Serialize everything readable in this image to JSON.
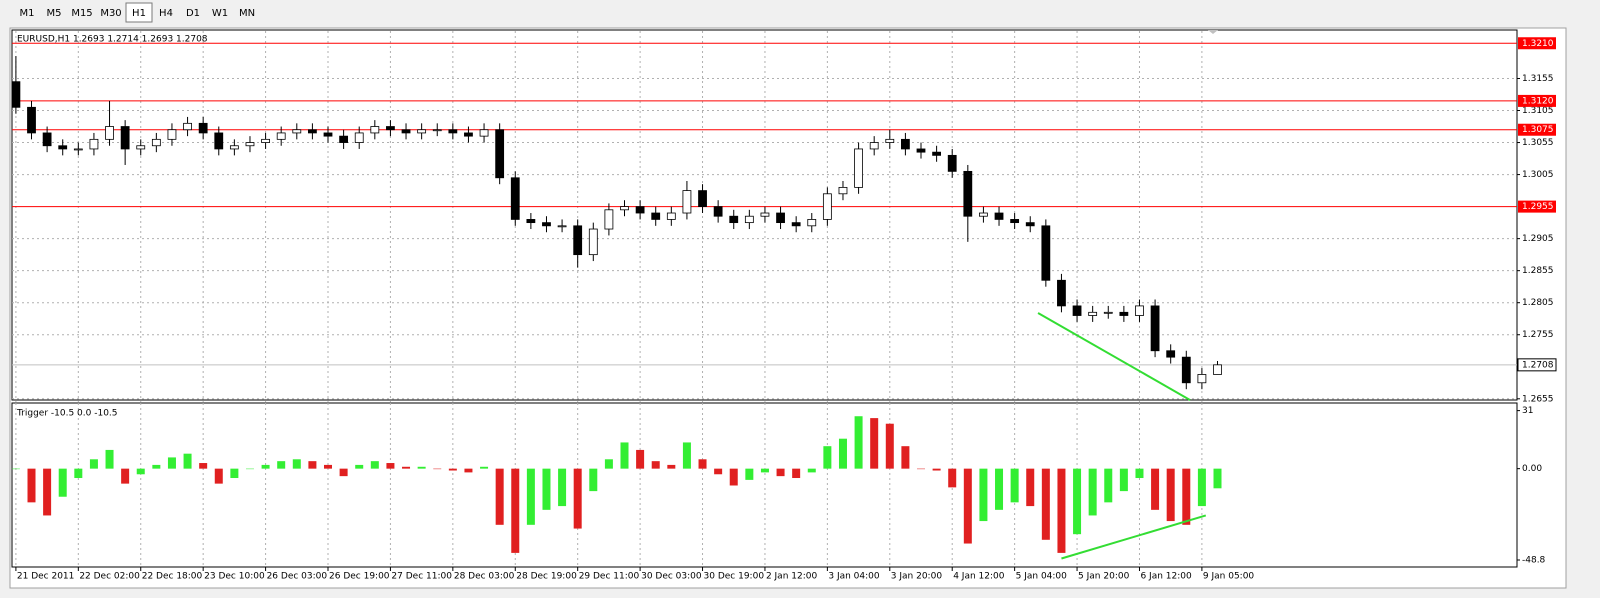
{
  "toolbar": {
    "timeframes": [
      "M1",
      "M5",
      "M15",
      "M30",
      "H1",
      "H4",
      "D1",
      "W1",
      "MN"
    ],
    "active_index": 4
  },
  "chart_data": [
    {
      "type": "candlestick",
      "title": "EURUSD,H1  1.2693 1.2714 1.2693 1.2708",
      "x": [
        0,
        4,
        8,
        12,
        16,
        20,
        24,
        28,
        32,
        36,
        40,
        44,
        48,
        52,
        56,
        60,
        64,
        68,
        72,
        76,
        80,
        84,
        88,
        92,
        96,
        100,
        104,
        108,
        112,
        116,
        120,
        124,
        128,
        132,
        136,
        140,
        144,
        148,
        152,
        156,
        160,
        164,
        168,
        172,
        176,
        180,
        184,
        188,
        192,
        196,
        200,
        204,
        208,
        212,
        216,
        220,
        224,
        228,
        232,
        236,
        240,
        244,
        248,
        252,
        256,
        260,
        264,
        268,
        272,
        276,
        280,
        284,
        288,
        292,
        296,
        300,
        304,
        308
      ],
      "open": [
        1.315,
        1.311,
        1.307,
        1.305,
        1.3045,
        1.3045,
        1.306,
        1.308,
        1.3045,
        1.305,
        1.306,
        1.3075,
        1.3085,
        1.307,
        1.3045,
        1.305,
        1.3055,
        1.306,
        1.307,
        1.3075,
        1.307,
        1.3065,
        1.3055,
        1.307,
        1.308,
        1.3075,
        1.307,
        1.3075,
        1.3075,
        1.307,
        1.3065,
        1.3075,
        1.3,
        1.2935,
        1.293,
        1.2925,
        1.2925,
        1.288,
        1.292,
        1.295,
        1.2955,
        1.2945,
        1.2935,
        1.2945,
        1.298,
        1.2955,
        1.294,
        1.293,
        1.294,
        1.2945,
        1.293,
        1.2925,
        1.2935,
        1.2975,
        1.2985,
        1.3045,
        1.3055,
        1.306,
        1.3045,
        1.304,
        1.3035,
        1.301,
        1.294,
        1.2945,
        1.2935,
        1.293,
        1.2925,
        1.284,
        1.28,
        1.2785,
        1.279,
        1.279,
        1.2785,
        1.28,
        1.273,
        1.272,
        1.268,
        1.2693
      ],
      "high": [
        1.319,
        1.312,
        1.308,
        1.306,
        1.3055,
        1.307,
        1.312,
        1.309,
        1.306,
        1.307,
        1.3085,
        1.3095,
        1.3095,
        1.308,
        1.306,
        1.3065,
        1.307,
        1.308,
        1.3085,
        1.3085,
        1.308,
        1.3075,
        1.308,
        1.309,
        1.309,
        1.3085,
        1.3085,
        1.3085,
        1.3085,
        1.308,
        1.3085,
        1.3085,
        1.301,
        1.2945,
        1.294,
        1.2935,
        1.2935,
        1.293,
        1.296,
        1.2965,
        1.2965,
        1.2955,
        1.2955,
        1.2995,
        1.299,
        1.2965,
        1.295,
        1.295,
        1.2955,
        1.2955,
        1.294,
        1.2945,
        1.2985,
        1.2995,
        1.3055,
        1.3065,
        1.3075,
        1.307,
        1.3055,
        1.305,
        1.3045,
        1.302,
        1.2955,
        1.2955,
        1.2945,
        1.294,
        1.2935,
        1.285,
        1.281,
        1.28,
        1.28,
        1.28,
        1.281,
        1.281,
        1.274,
        1.273,
        1.2703,
        1.2714
      ],
      "low": [
        1.31,
        1.306,
        1.304,
        1.3035,
        1.3035,
        1.3035,
        1.305,
        1.302,
        1.3035,
        1.304,
        1.305,
        1.3065,
        1.306,
        1.3035,
        1.3035,
        1.304,
        1.3045,
        1.305,
        1.306,
        1.306,
        1.3055,
        1.3045,
        1.3045,
        1.306,
        1.3065,
        1.306,
        1.306,
        1.3065,
        1.306,
        1.3055,
        1.3055,
        1.299,
        1.2925,
        1.292,
        1.2915,
        1.2915,
        1.286,
        1.287,
        1.291,
        1.294,
        1.2935,
        1.2925,
        1.2925,
        1.2935,
        1.2945,
        1.293,
        1.292,
        1.292,
        1.293,
        1.292,
        1.2915,
        1.2915,
        1.2925,
        1.2965,
        1.2975,
        1.3035,
        1.3045,
        1.3035,
        1.303,
        1.3025,
        1.3,
        1.29,
        1.293,
        1.2925,
        1.292,
        1.2915,
        1.283,
        1.279,
        1.2775,
        1.2775,
        1.278,
        1.2775,
        1.2775,
        1.272,
        1.271,
        1.267,
        1.267,
        1.2693
      ],
      "close": [
        1.311,
        1.307,
        1.305,
        1.3045,
        1.3045,
        1.306,
        1.308,
        1.3045,
        1.305,
        1.306,
        1.3075,
        1.3085,
        1.307,
        1.3045,
        1.305,
        1.3055,
        1.306,
        1.307,
        1.3075,
        1.307,
        1.3065,
        1.3055,
        1.307,
        1.308,
        1.3075,
        1.307,
        1.3075,
        1.3075,
        1.307,
        1.3065,
        1.3075,
        1.3,
        1.2935,
        1.293,
        1.2925,
        1.2925,
        1.288,
        1.292,
        1.295,
        1.2955,
        1.2945,
        1.2935,
        1.2945,
        1.298,
        1.2955,
        1.294,
        1.293,
        1.294,
        1.2945,
        1.293,
        1.2925,
        1.2935,
        1.2975,
        1.2985,
        1.3045,
        1.3055,
        1.306,
        1.3045,
        1.304,
        1.3035,
        1.301,
        1.294,
        1.2945,
        1.2935,
        1.293,
        1.2925,
        1.284,
        1.28,
        1.2785,
        1.279,
        1.279,
        1.2785,
        1.28,
        1.273,
        1.272,
        1.268,
        1.2693,
        1.2708
      ],
      "xlim": [
        -1,
        384
      ],
      "ylim": [
        1.265,
        1.3226
      ],
      "yticks": [
        1.3155,
        1.3105,
        1.3055,
        1.3005,
        1.2905,
        1.2855,
        1.2805,
        1.2755,
        1.2655
      ],
      "hlines": [
        {
          "value": 1.321,
          "label": "1.3210"
        },
        {
          "value": 1.312,
          "label": "1.3120"
        },
        1.3075,
        1.2955
      ],
      "hline_color": "#ff0000",
      "last_price": 1.2708,
      "trendline": {
        "x": [
          262,
          301
        ],
        "y": [
          1.2789,
          1.2653
        ]
      },
      "trend_color": "#33dd33",
      "up_color": "#ffffff",
      "down_color": "#000000",
      "grid": true
    },
    {
      "type": "histogram",
      "title": "Trigger -10.5 0.0 -10.5",
      "x": [
        0,
        4,
        8,
        12,
        16,
        20,
        24,
        28,
        32,
        36,
        40,
        44,
        48,
        52,
        56,
        60,
        64,
        68,
        72,
        76,
        80,
        84,
        88,
        92,
        96,
        100,
        104,
        108,
        112,
        116,
        120,
        124,
        128,
        132,
        136,
        140,
        144,
        148,
        152,
        156,
        160,
        164,
        168,
        172,
        176,
        180,
        184,
        188,
        192,
        196,
        200,
        204,
        208,
        212,
        216,
        220,
        224,
        228,
        232,
        236,
        240,
        244,
        248,
        252,
        256,
        260,
        264,
        268,
        272,
        276,
        280,
        284,
        288,
        292,
        296,
        300,
        304,
        308
      ],
      "values": [
        0,
        -18,
        -25,
        -15,
        -5,
        5,
        10,
        -8,
        -3,
        2,
        6,
        8,
        3,
        -8,
        -5,
        0,
        2,
        4,
        5,
        4,
        2,
        -4,
        2,
        4,
        3,
        1,
        1,
        0,
        -1,
        -2,
        1,
        -30,
        -45,
        -30,
        -22,
        -20,
        -32,
        -12,
        5,
        14,
        10,
        4,
        2,
        14,
        5,
        -3,
        -9,
        -6,
        -2,
        -4,
        -5,
        -2,
        12,
        16,
        28,
        27,
        24,
        12,
        0,
        -1,
        -10,
        -40,
        -28,
        -22,
        -18,
        -20,
        -38,
        -45,
        -35,
        -25,
        -18,
        -12,
        -5,
        -22,
        -28,
        -30,
        -20,
        -10.5
      ],
      "xlim": [
        -1,
        384
      ],
      "ylim": [
        -52,
        34
      ],
      "yticks": [
        31,
        {
          "value": 0,
          "label": "0.00"
        },
        -48.8
      ],
      "xticks": [
        {
          "value": 0,
          "label": "21 Dec 2011"
        },
        {
          "value": 16,
          "label": "22 Dec 02:00"
        },
        {
          "value": 32,
          "label": "22 Dec 18:00"
        },
        {
          "value": 48,
          "label": "23 Dec 10:00"
        },
        {
          "value": 64,
          "label": "26 Dec 03:00"
        },
        {
          "value": 80,
          "label": "26 Dec 19:00"
        },
        {
          "value": 96,
          "label": "27 Dec 11:00"
        },
        {
          "value": 112,
          "label": "28 Dec 03:00"
        },
        {
          "value": 128,
          "label": "28 Dec 19:00"
        },
        {
          "value": 144,
          "label": "29 Dec 11:00"
        },
        {
          "value": 160,
          "label": "30 Dec 03:00"
        },
        {
          "value": 176,
          "label": "30 Dec 19:00"
        },
        {
          "value": 192,
          "label": "2 Jan 12:00"
        },
        {
          "value": 208,
          "label": "3 Jan 04:00"
        },
        {
          "value": 224,
          "label": "3 Jan 20:00"
        },
        {
          "value": 240,
          "label": "4 Jan 12:00"
        },
        {
          "value": 256,
          "label": "5 Jan 04:00"
        },
        {
          "value": 272,
          "label": "5 Jan 20:00"
        },
        {
          "value": 288,
          "label": "6 Jan 12:00"
        },
        {
          "value": 304,
          "label": "9 Jan 05:00"
        }
      ],
      "trendline": {
        "x": [
          268,
          305
        ],
        "y": [
          -48,
          -25
        ]
      },
      "trend_color": "#33dd33",
      "up_color": "#33ee33",
      "down_color": "#e02020",
      "grid": true
    }
  ]
}
